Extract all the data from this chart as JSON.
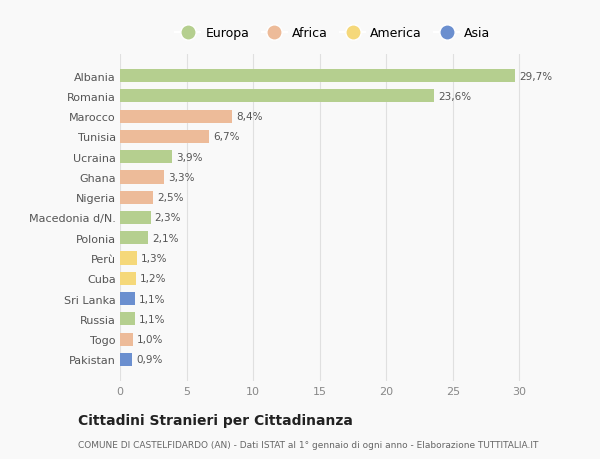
{
  "categories": [
    "Albania",
    "Romania",
    "Marocco",
    "Tunisia",
    "Ucraina",
    "Ghana",
    "Nigeria",
    "Macedonia d/N.",
    "Polonia",
    "Perù",
    "Cuba",
    "Sri Lanka",
    "Russia",
    "Togo",
    "Pakistan"
  ],
  "values": [
    29.7,
    23.6,
    8.4,
    6.7,
    3.9,
    3.3,
    2.5,
    2.3,
    2.1,
    1.3,
    1.2,
    1.1,
    1.1,
    1.0,
    0.9
  ],
  "labels": [
    "29,7%",
    "23,6%",
    "8,4%",
    "6,7%",
    "3,9%",
    "3,3%",
    "2,5%",
    "2,3%",
    "2,1%",
    "1,3%",
    "1,2%",
    "1,1%",
    "1,1%",
    "1,0%",
    "0,9%"
  ],
  "continents": [
    "Europa",
    "Europa",
    "Africa",
    "Africa",
    "Europa",
    "Africa",
    "Africa",
    "Europa",
    "Europa",
    "America",
    "America",
    "Asia",
    "Europa",
    "Africa",
    "Asia"
  ],
  "colors": {
    "Europa": "#b5cf8f",
    "Africa": "#edbb99",
    "America": "#f5d87a",
    "Asia": "#6b8fcf"
  },
  "legend_order": [
    "Europa",
    "Africa",
    "America",
    "Asia"
  ],
  "title": "Cittadini Stranieri per Cittadinanza",
  "subtitle": "COMUNE DI CASTELFIDARDO (AN) - Dati ISTAT al 1° gennaio di ogni anno - Elaborazione TUTTITALIA.IT",
  "xlim": [
    0,
    32
  ],
  "xticks": [
    0,
    5,
    10,
    15,
    20,
    25,
    30
  ],
  "background_color": "#f9f9f9",
  "grid_color": "#e0e0e0"
}
